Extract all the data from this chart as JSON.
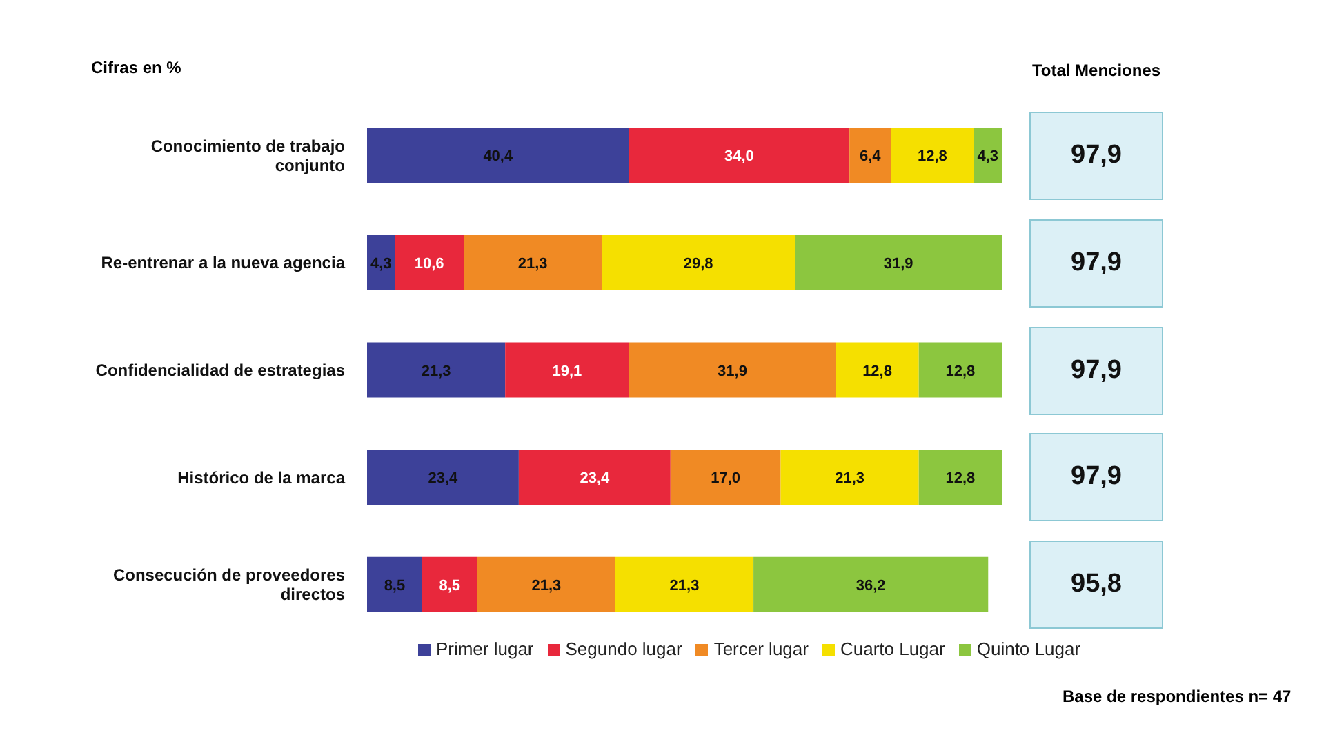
{
  "chart_data": {
    "type": "bar",
    "orientation": "horizontal",
    "stacked": true,
    "legend": "bottom",
    "categories": [
      "Conocimiento de trabajo conjunto",
      "Re-entrenar a la nueva agencia",
      "Confidencialidad de estrategias",
      "Histórico de la marca",
      "Consecución de proveedores directos"
    ],
    "series": [
      {
        "name": "Primer lugar",
        "color": "#3d4199",
        "values": [
          40.4,
          4.3,
          21.3,
          23.4,
          8.5
        ],
        "value_labels": [
          "40,4",
          "4,3",
          "21,3",
          "23,4",
          "8,5"
        ]
      },
      {
        "name": "Segundo lugar",
        "color": "#e8283c",
        "values": [
          34.0,
          10.6,
          19.1,
          23.4,
          8.5
        ],
        "value_labels": [
          "34,0",
          "10,6",
          "19,1",
          "23,4",
          "8,5"
        ]
      },
      {
        "name": "Tercer lugar",
        "color": "#f08a24",
        "values": [
          6.4,
          21.3,
          31.9,
          17.0,
          21.3
        ],
        "value_labels": [
          "6,4",
          "21,3",
          "31,9",
          "17,0",
          "21,3"
        ]
      },
      {
        "name": "Cuarto Lugar",
        "color": "#f5e000",
        "values": [
          12.8,
          29.8,
          12.8,
          21.3,
          21.3
        ],
        "value_labels": [
          "12,8",
          "29,8",
          "12,8",
          "21,3",
          "21,3"
        ]
      },
      {
        "name": "Quinto Lugar",
        "color": "#8cc63f",
        "values": [
          4.3,
          31.9,
          12.8,
          12.8,
          36.2
        ],
        "value_labels": [
          "4,3",
          "31,9",
          "12,8",
          "12,8",
          "36,2"
        ]
      }
    ],
    "totals": [
      "97,9",
      "97,9",
      "97,9",
      "97,9",
      "95,8"
    ],
    "annotations": [
      "Cifras en %",
      "Total Menciones",
      "Base de respondientes n= 47"
    ]
  }
}
